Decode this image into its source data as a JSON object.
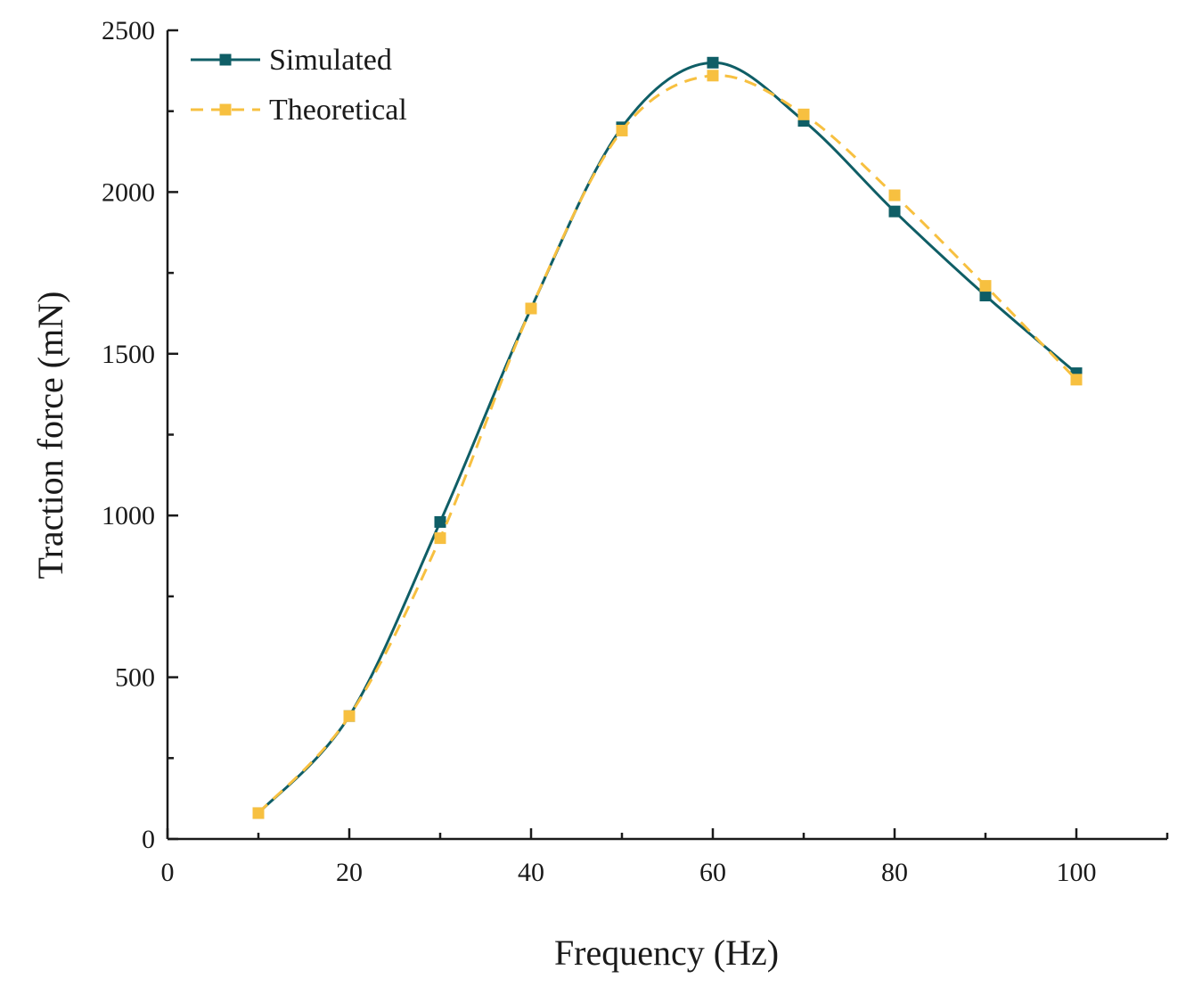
{
  "chart_data": {
    "type": "line",
    "title": "",
    "xlabel": "Frequency (Hz)",
    "ylabel": "Traction force (mN)",
    "xlim": [
      0,
      110
    ],
    "ylim": [
      0,
      2500
    ],
    "x_ticks": [
      0,
      20,
      40,
      60,
      80,
      100
    ],
    "x_minor_ticks": [
      10,
      30,
      50,
      70,
      90,
      110
    ],
    "y_ticks": [
      0,
      500,
      1000,
      1500,
      2000,
      2500
    ],
    "y_minor_ticks": [
      250,
      750,
      1250,
      1750,
      2250
    ],
    "x_tick_labels": [
      "0",
      "20",
      "40",
      "60",
      "80",
      "100"
    ],
    "y_tick_labels": [
      "0",
      "500",
      "1000",
      "1500",
      "2000",
      "2500"
    ],
    "grid": false,
    "legend_position": "top-left",
    "x": [
      10,
      20,
      30,
      40,
      50,
      60,
      70,
      80,
      90,
      100
    ],
    "series": [
      {
        "name": "Simulated",
        "color": "#0f5e66",
        "line_style": "solid",
        "marker": "square",
        "values": [
          80,
          380,
          980,
          1640,
          2200,
          2400,
          2220,
          1940,
          1680,
          1440
        ]
      },
      {
        "name": "Theoretical",
        "color": "#f7c040",
        "line_style": "dashed",
        "marker": "square",
        "values": [
          80,
          380,
          930,
          1640,
          2190,
          2360,
          2240,
          1990,
          1710,
          1420
        ]
      }
    ]
  }
}
